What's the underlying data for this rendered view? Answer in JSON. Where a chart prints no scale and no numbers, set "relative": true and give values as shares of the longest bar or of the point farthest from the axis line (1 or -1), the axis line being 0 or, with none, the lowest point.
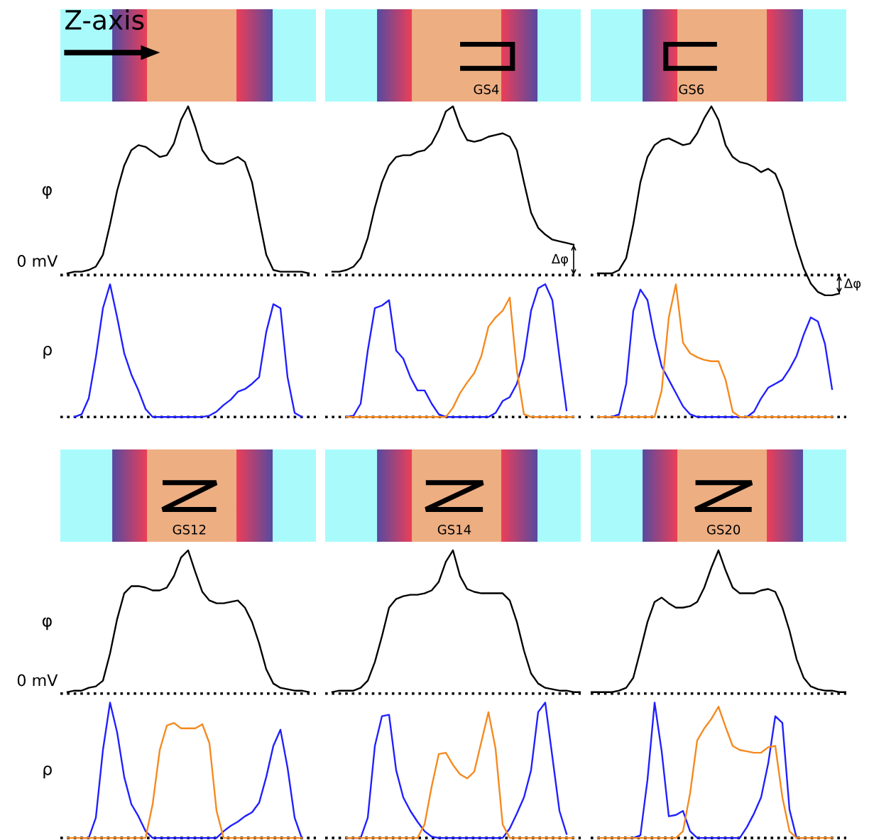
{
  "chart_data": [
    {
      "type": "other",
      "annotations": [
        "Z-axis"
      ]
    },
    {
      "type": "other",
      "annotations": [
        "GS4"
      ]
    },
    {
      "type": "other",
      "annotations": [
        "GS6"
      ]
    },
    {
      "type": "line",
      "relative": true,
      "ylabel": "φ",
      "categories": [
        null,
        null,
        null,
        null,
        null,
        null,
        null,
        null,
        null,
        null,
        null,
        null,
        null,
        null,
        null,
        null,
        null,
        null,
        null,
        null,
        null,
        null,
        null,
        null,
        null,
        null,
        null,
        null,
        null,
        null,
        null,
        null,
        null,
        null,
        null,
        null,
        null
      ],
      "series": [
        {
          "color": "#000000",
          "values": [
            null,
            0.01,
            0.02,
            0.02,
            0.03,
            0.05,
            0.12,
            0.3,
            0.5,
            0.65,
            0.74,
            0.77,
            0.76,
            0.73,
            0.7,
            0.71,
            0.78,
            0.92,
            1,
            0.88,
            0.74,
            0.68,
            0.66,
            0.66,
            0.68,
            0.7,
            0.67,
            0.55,
            0.33,
            0.12,
            0.03,
            0.02,
            0.02,
            0.02,
            0.02,
            0.01,
            null
          ]
        }
      ],
      "ref_lines": [
        {
          "axis": "y",
          "value": 0,
          "label": "0 mV",
          "line_style": "dotted",
          "color": "#000000"
        }
      ]
    },
    {
      "type": "line",
      "relative": true,
      "categories": [
        null,
        null,
        null,
        null,
        null,
        null,
        null,
        null,
        null,
        null,
        null,
        null,
        null,
        null,
        null,
        null,
        null,
        null,
        null,
        null,
        null,
        null,
        null,
        null,
        null,
        null,
        null,
        null,
        null,
        null,
        null,
        null,
        null,
        null,
        null,
        null,
        null
      ],
      "series": [
        {
          "color": "#000000",
          "values": [
            null,
            0.02,
            0.02,
            0.03,
            0.05,
            0.1,
            0.22,
            0.4,
            0.55,
            0.65,
            0.7,
            0.71,
            0.71,
            0.73,
            0.74,
            0.78,
            0.86,
            0.97,
            1,
            0.88,
            0.8,
            0.79,
            0.8,
            0.82,
            0.83,
            0.84,
            0.82,
            0.74,
            0.55,
            0.37,
            0.28,
            0.24,
            0.21,
            0.2,
            0.19,
            0.18,
            null
          ]
        }
      ],
      "ref_lines": [
        {
          "axis": "y",
          "value": 0,
          "line_style": "dotted",
          "color": "#000000"
        }
      ],
      "annotations": [
        "Δφ"
      ]
    },
    {
      "type": "line",
      "relative": true,
      "categories": [
        null,
        null,
        null,
        null,
        null,
        null,
        null,
        null,
        null,
        null,
        null,
        null,
        null,
        null,
        null,
        null,
        null,
        null,
        null,
        null,
        null,
        null,
        null,
        null,
        null,
        null,
        null,
        null,
        null,
        null,
        null,
        null,
        null,
        null,
        null,
        null,
        null
      ],
      "series": [
        {
          "color": "#000000",
          "values": [
            null,
            0.01,
            0.01,
            0.01,
            0.03,
            0.1,
            0.3,
            0.55,
            0.7,
            0.77,
            0.8,
            0.81,
            0.79,
            0.77,
            0.78,
            0.84,
            0.93,
            1,
            0.92,
            0.77,
            0.7,
            0.67,
            0.66,
            0.64,
            0.61,
            0.63,
            0.6,
            0.5,
            0.33,
            0.17,
            0.04,
            -0.05,
            -0.1,
            -0.12,
            -0.12,
            -0.11,
            null
          ]
        }
      ],
      "ref_lines": [
        {
          "axis": "y",
          "value": 0,
          "line_style": "dotted",
          "color": "#000000"
        }
      ],
      "annotations": [
        "Δφ"
      ]
    },
    {
      "type": "line",
      "relative": true,
      "ylabel": "ρ",
      "categories": [
        null,
        null,
        null,
        null,
        null,
        null,
        null,
        null,
        null,
        null,
        null,
        null,
        null,
        null,
        null,
        null,
        null,
        null,
        null,
        null,
        null,
        null,
        null,
        null,
        null,
        null,
        null,
        null,
        null,
        null,
        null,
        null,
        null,
        null,
        null,
        null,
        null
      ],
      "series": [
        {
          "color": "#1f1fff",
          "values": [
            null,
            null,
            0,
            0.02,
            0.14,
            0.45,
            0.82,
            1,
            0.75,
            0.48,
            0.32,
            0.2,
            0.06,
            0,
            0,
            0,
            0,
            0,
            0,
            0,
            0,
            0.01,
            0.04,
            0.09,
            0.13,
            0.19,
            0.21,
            0.25,
            0.3,
            0.64,
            0.85,
            0.82,
            0.3,
            0.03,
            0,
            null,
            null
          ]
        }
      ],
      "ref_lines": [
        {
          "axis": "y",
          "value": 0,
          "line_style": "dotted",
          "color": "#000000"
        }
      ]
    },
    {
      "type": "line",
      "relative": true,
      "categories": [
        null,
        null,
        null,
        null,
        null,
        null,
        null,
        null,
        null,
        null,
        null,
        null,
        null,
        null,
        null,
        null,
        null,
        null,
        null,
        null,
        null,
        null,
        null,
        null,
        null,
        null,
        null,
        null,
        null,
        null,
        null,
        null,
        null,
        null,
        null,
        null,
        null
      ],
      "series": [
        {
          "color": "#1f1fff",
          "values": [
            null,
            null,
            null,
            0,
            0.01,
            0.1,
            0.5,
            0.82,
            0.84,
            0.88,
            0.5,
            0.44,
            0.3,
            0.2,
            0.2,
            0.1,
            0.02,
            0,
            0,
            0,
            0,
            0,
            0,
            0,
            0.03,
            0.12,
            0.15,
            0.25,
            0.44,
            0.8,
            0.97,
            1,
            0.88,
            0.45,
            0.05,
            null,
            null
          ]
        },
        {
          "color": "#f5891f",
          "values": [
            null,
            null,
            null,
            0,
            0,
            0,
            0,
            0,
            0,
            0,
            0,
            0,
            0,
            0,
            0,
            0,
            0,
            0,
            0.07,
            0.18,
            0.26,
            0.33,
            0.46,
            0.68,
            0.75,
            0.8,
            0.9,
            0.35,
            0.02,
            0,
            0,
            0,
            0,
            0,
            0,
            0,
            null
          ]
        }
      ],
      "ref_lines": [
        {
          "axis": "y",
          "value": 0,
          "line_style": "dotted",
          "color": "#000000"
        }
      ]
    },
    {
      "type": "line",
      "relative": true,
      "categories": [
        null,
        null,
        null,
        null,
        null,
        null,
        null,
        null,
        null,
        null,
        null,
        null,
        null,
        null,
        null,
        null,
        null,
        null,
        null,
        null,
        null,
        null,
        null,
        null,
        null,
        null,
        null,
        null,
        null,
        null,
        null,
        null,
        null,
        null,
        null,
        null,
        null
      ],
      "series": [
        {
          "color": "#1f1fff",
          "values": [
            null,
            null,
            0,
            0,
            0.02,
            0.25,
            0.8,
            0.96,
            0.88,
            0.6,
            0.38,
            0.28,
            0.18,
            0.08,
            0.02,
            0,
            0,
            0,
            0,
            0,
            0,
            0,
            0,
            0.04,
            0.14,
            0.22,
            0.25,
            0.28,
            0.36,
            0.46,
            0.62,
            0.75,
            0.72,
            0.55,
            0.21,
            null,
            null
          ]
        },
        {
          "color": "#f5891f",
          "values": [
            null,
            0,
            0,
            0,
            0,
            0,
            0,
            0,
            0,
            0,
            0.2,
            0.75,
            1,
            0.56,
            0.48,
            0.45,
            0.43,
            0.42,
            0.42,
            0.28,
            0.04,
            0,
            0,
            0,
            0,
            0,
            0,
            0,
            0,
            0,
            0,
            0,
            0,
            0,
            0,
            null,
            null
          ]
        }
      ],
      "ref_lines": [
        {
          "axis": "y",
          "value": 0,
          "line_style": "dotted",
          "color": "#000000"
        }
      ]
    },
    {
      "type": "other",
      "annotations": [
        "GS12"
      ]
    },
    {
      "type": "other",
      "annotations": [
        "GS14"
      ]
    },
    {
      "type": "other",
      "annotations": [
        "GS20"
      ]
    },
    {
      "type": "line",
      "relative": true,
      "ylabel": "φ",
      "categories": [
        null,
        null,
        null,
        null,
        null,
        null,
        null,
        null,
        null,
        null,
        null,
        null,
        null,
        null,
        null,
        null,
        null,
        null,
        null,
        null,
        null,
        null,
        null,
        null,
        null,
        null,
        null,
        null,
        null,
        null,
        null,
        null,
        null,
        null,
        null,
        null,
        null
      ],
      "series": [
        {
          "color": "#000000",
          "values": [
            null,
            0.01,
            0.02,
            0.02,
            0.04,
            0.05,
            0.09,
            0.28,
            0.52,
            0.7,
            0.75,
            0.75,
            0.74,
            0.72,
            0.72,
            0.74,
            0.82,
            0.95,
            1,
            0.85,
            0.71,
            0.65,
            0.63,
            0.63,
            0.64,
            0.65,
            0.6,
            0.5,
            0.35,
            0.17,
            0.07,
            0.04,
            0.03,
            0.02,
            0.02,
            0.01,
            null
          ]
        }
      ],
      "ref_lines": [
        {
          "axis": "y",
          "value": 0,
          "label": "0 mV",
          "line_style": "dotted",
          "color": "#000000"
        }
      ]
    },
    {
      "type": "line",
      "relative": true,
      "categories": [
        null,
        null,
        null,
        null,
        null,
        null,
        null,
        null,
        null,
        null,
        null,
        null,
        null,
        null,
        null,
        null,
        null,
        null,
        null,
        null,
        null,
        null,
        null,
        null,
        null,
        null,
        null,
        null,
        null,
        null,
        null,
        null,
        null,
        null,
        null,
        null,
        null
      ],
      "series": [
        {
          "color": "#000000",
          "values": [
            null,
            0.01,
            0.02,
            0.02,
            0.02,
            0.04,
            0.09,
            0.22,
            0.4,
            0.6,
            0.66,
            0.68,
            0.69,
            0.69,
            0.7,
            0.72,
            0.78,
            0.92,
            1,
            0.82,
            0.73,
            0.71,
            0.7,
            0.7,
            0.7,
            0.7,
            0.65,
            0.5,
            0.3,
            0.14,
            0.07,
            0.04,
            0.03,
            0.02,
            0.02,
            0.01,
            0.01
          ]
        }
      ],
      "ref_lines": [
        {
          "axis": "y",
          "value": 0,
          "line_style": "dotted",
          "color": "#000000"
        }
      ]
    },
    {
      "type": "line",
      "relative": true,
      "categories": [
        null,
        null,
        null,
        null,
        null,
        null,
        null,
        null,
        null,
        null,
        null,
        null,
        null,
        null,
        null,
        null,
        null,
        null,
        null,
        null,
        null,
        null,
        null,
        null,
        null,
        null,
        null,
        null,
        null,
        null,
        null,
        null,
        null,
        null,
        null,
        null,
        null
      ],
      "series": [
        {
          "color": "#000000",
          "values": [
            0.01,
            0.01,
            0.01,
            0.01,
            0.02,
            0.04,
            0.11,
            0.3,
            0.5,
            0.64,
            0.67,
            0.63,
            0.6,
            0.6,
            0.61,
            0.64,
            0.74,
            0.88,
            1,
            0.86,
            0.74,
            0.7,
            0.7,
            0.7,
            0.72,
            0.73,
            0.71,
            0.6,
            0.44,
            0.24,
            0.11,
            0.05,
            0.03,
            0.02,
            0.02,
            0.01,
            0.01
          ]
        }
      ],
      "ref_lines": [
        {
          "axis": "y",
          "value": 0,
          "line_style": "dotted",
          "color": "#000000"
        }
      ]
    },
    {
      "type": "line",
      "relative": true,
      "ylabel": "ρ",
      "categories": [
        null,
        null,
        null,
        null,
        null,
        null,
        null,
        null,
        null,
        null,
        null,
        null,
        null,
        null,
        null,
        null,
        null,
        null,
        null,
        null,
        null,
        null,
        null,
        null,
        null,
        null,
        null,
        null,
        null,
        null,
        null,
        null,
        null,
        null,
        null,
        null,
        null
      ],
      "series": [
        {
          "color": "#1f1fff",
          "values": [
            null,
            null,
            null,
            0,
            0,
            0.15,
            0.65,
            1,
            0.78,
            0.45,
            0.25,
            0.16,
            0.05,
            0,
            0,
            0,
            0,
            0,
            0,
            0,
            0,
            0,
            0,
            0.05,
            0.09,
            0.12,
            0.16,
            0.19,
            0.26,
            0.45,
            0.68,
            0.8,
            0.52,
            0.15,
            0,
            null,
            null
          ]
        },
        {
          "color": "#f5891f",
          "values": [
            null,
            0,
            0,
            0,
            0,
            0,
            0,
            0,
            0,
            0,
            0,
            0,
            0,
            0.25,
            0.65,
            0.83,
            0.85,
            0.81,
            0.81,
            0.81,
            0.84,
            0.7,
            0.2,
            0,
            0,
            0,
            0,
            0,
            0,
            0,
            0,
            0,
            0,
            0,
            0,
            null,
            null
          ]
        }
      ],
      "ref_lines": [
        {
          "axis": "y",
          "value": 0,
          "line_style": "dotted",
          "color": "#000000"
        }
      ]
    },
    {
      "type": "line",
      "relative": true,
      "categories": [
        null,
        null,
        null,
        null,
        null,
        null,
        null,
        null,
        null,
        null,
        null,
        null,
        null,
        null,
        null,
        null,
        null,
        null,
        null,
        null,
        null,
        null,
        null,
        null,
        null,
        null,
        null,
        null,
        null,
        null,
        null,
        null,
        null,
        null,
        null,
        null,
        null
      ],
      "series": [
        {
          "color": "#1f1fff",
          "values": [
            null,
            null,
            null,
            0,
            0,
            0,
            0.15,
            0.68,
            0.9,
            0.91,
            0.5,
            0.3,
            0.2,
            0.12,
            0.05,
            0.01,
            0,
            0,
            0,
            0,
            0,
            0,
            0,
            0,
            0,
            0,
            0.07,
            0.18,
            0.3,
            0.5,
            0.93,
            1,
            0.6,
            0.2,
            0.03,
            null,
            null
          ]
        },
        {
          "color": "#f5891f",
          "values": [
            null,
            null,
            null,
            0,
            0,
            0,
            0,
            0,
            0,
            0,
            0,
            0,
            0,
            0,
            0.1,
            0.38,
            0.62,
            0.63,
            0.54,
            0.47,
            0.44,
            0.49,
            0.71,
            0.93,
            0.66,
            0.1,
            0,
            0,
            0,
            0,
            0,
            0,
            0,
            0,
            0,
            0,
            null
          ]
        }
      ],
      "ref_lines": [
        {
          "axis": "y",
          "value": 0,
          "line_style": "dotted",
          "color": "#000000"
        }
      ]
    },
    {
      "type": "line",
      "relative": true,
      "categories": [
        null,
        null,
        null,
        null,
        null,
        null,
        null,
        null,
        null,
        null,
        null,
        null,
        null,
        null,
        null,
        null,
        null,
        null,
        null,
        null,
        null,
        null,
        null,
        null,
        null,
        null,
        null,
        null,
        null,
        null,
        null,
        null,
        null,
        null,
        null,
        null,
        null
      ],
      "series": [
        {
          "color": "#1f1fff",
          "values": [
            null,
            null,
            null,
            null,
            null,
            0,
            0,
            0.02,
            0.43,
            1,
            0.64,
            0.16,
            0.17,
            0.2,
            0.05,
            0,
            0,
            0,
            0,
            0,
            0,
            0,
            0.08,
            0.18,
            0.3,
            0.55,
            0.9,
            0.85,
            0.21,
            0,
            0,
            null,
            null,
            null,
            null,
            null,
            null
          ]
        },
        {
          "color": "#f5891f",
          "values": [
            null,
            0,
            0,
            0,
            0,
            0,
            0,
            0,
            0,
            0,
            0,
            0,
            0,
            0.05,
            0.33,
            0.72,
            0.81,
            0.88,
            0.97,
            0.82,
            0.68,
            0.65,
            0.64,
            0.63,
            0.63,
            0.67,
            0.68,
            0.3,
            0.05,
            0,
            0,
            0,
            0,
            0,
            0,
            null,
            null
          ]
        }
      ],
      "ref_lines": [
        {
          "axis": "y",
          "value": 0,
          "line_style": "dotted",
          "color": "#000000"
        }
      ]
    }
  ]
}
